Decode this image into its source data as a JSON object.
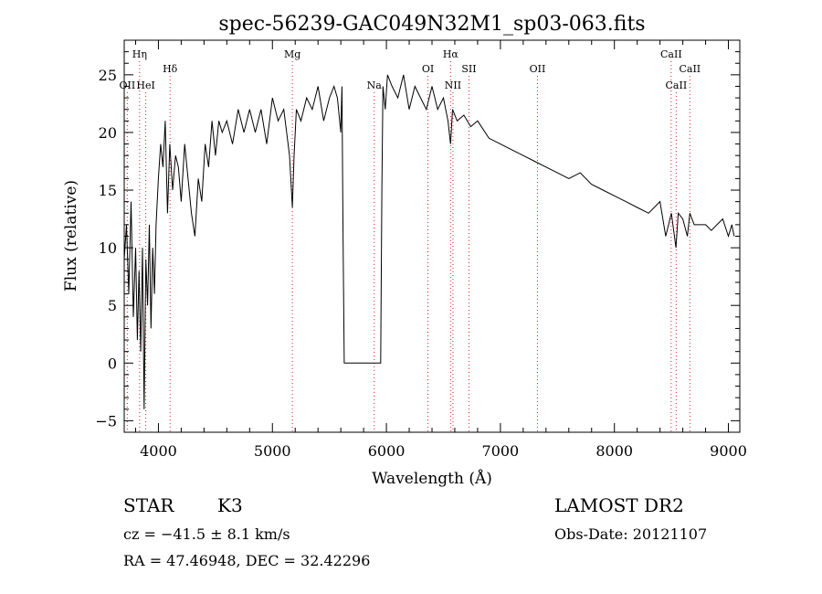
{
  "chart_data": {
    "type": "line",
    "title": "spec-56239-GAC049N32M1_sp03-063.fits",
    "xlabel": "Wavelength (Å)",
    "ylabel": "Flux (relative)",
    "xlim": [
      3700,
      9100
    ],
    "ylim": [
      -6,
      28
    ],
    "xticks": [
      4000,
      5000,
      6000,
      7000,
      8000,
      9000
    ],
    "yticks": [
      -5,
      0,
      5,
      10,
      15,
      20,
      25
    ],
    "grid": false,
    "series": [
      {
        "x": [
          3700,
          3720,
          3740,
          3760,
          3780,
          3800,
          3815,
          3830,
          3845,
          3860,
          3875,
          3890,
          3905,
          3920,
          3935,
          3950,
          3965,
          3980,
          4000,
          4020,
          4040,
          4060,
          4080,
          4100,
          4125,
          4150,
          4175,
          4200,
          4230,
          4260,
          4290,
          4320,
          4350,
          4380,
          4410,
          4440,
          4470,
          4500,
          4530,
          4560,
          4600,
          4650,
          4700,
          4750,
          4800,
          4850,
          4900,
          4950,
          5000,
          5050,
          5100,
          5150,
          5175,
          5190,
          5210,
          5250,
          5300,
          5350,
          5400,
          5450,
          5500,
          5540,
          5570,
          5590,
          5600,
          5610,
          5620,
          5630,
          5700,
          5800,
          5900,
          5950,
          5960,
          5970,
          5990,
          6010,
          6050,
          6100,
          6150,
          6200,
          6250,
          6300,
          6350,
          6400,
          6450,
          6500,
          6540,
          6563,
          6580,
          6620,
          6680,
          6740,
          6800,
          6900,
          7000,
          7100,
          7200,
          7300,
          7400,
          7500,
          7600,
          7700,
          7800,
          7900,
          8000,
          8100,
          8200,
          8300,
          8400,
          8450,
          8500,
          8540,
          8560,
          8600,
          8640,
          8662,
          8700,
          8800,
          8850,
          8900,
          8950,
          9000,
          9030,
          9050
        ],
        "y": [
          9,
          12,
          6,
          14,
          4,
          10,
          2,
          8,
          1,
          10,
          -4,
          9,
          5,
          12,
          3,
          10,
          6,
          12,
          16,
          19,
          17,
          21,
          13,
          19,
          15,
          18,
          17,
          14,
          19,
          16,
          13,
          11,
          16,
          14,
          19,
          17,
          21,
          18,
          21,
          20,
          21,
          19,
          22,
          20,
          22,
          20,
          22,
          19,
          23,
          21,
          22,
          18,
          13.5,
          18,
          22,
          21,
          23,
          22,
          24,
          21,
          23,
          24,
          23,
          21,
          20,
          24,
          11,
          0,
          0,
          0,
          0,
          0,
          15,
          24,
          22,
          25,
          24,
          23,
          25,
          22,
          24,
          23,
          22,
          24,
          22,
          23,
          21,
          19,
          22,
          21,
          21.5,
          20.5,
          21,
          19.5,
          19,
          18.5,
          18,
          17.5,
          17,
          16.5,
          16,
          16.5,
          15.5,
          15,
          14.5,
          14,
          13.5,
          13,
          14,
          11,
          13,
          10,
          13,
          12.5,
          11,
          13,
          12,
          12,
          11.5,
          12,
          12.5,
          11,
          12,
          11
        ]
      }
    ],
    "line_markers": [
      {
        "label": "Hη",
        "x": 3835,
        "row": 1
      },
      {
        "label": "OII",
        "x": 3727,
        "row": 3
      },
      {
        "label": "HeI",
        "x": 3889,
        "row": 3
      },
      {
        "label": "Hδ",
        "x": 4102,
        "row": 2
      },
      {
        "label": "Mg",
        "x": 5175,
        "row": 1
      },
      {
        "label": "Na",
        "x": 5893,
        "row": 3
      },
      {
        "label": "Hα",
        "x": 6563,
        "row": 1
      },
      {
        "label": "OI",
        "x": 6364,
        "row": 2
      },
      {
        "label": "SII",
        "x": 6724,
        "row": 2
      },
      {
        "label": "NII",
        "x": 6584,
        "row": 3
      },
      {
        "label": "OII",
        "x": 7325,
        "row": 2
      },
      {
        "label": "CaII",
        "x": 8498,
        "row": 1
      },
      {
        "label": "CaII",
        "x": 8662,
        "row": 2
      },
      {
        "label": "CaII",
        "x": 8542,
        "row": 3
      }
    ]
  },
  "info": {
    "object_type": "STAR",
    "subclass": "K3",
    "survey": "LAMOST DR2",
    "velocity": "cz = −41.5 ± 8.1 km/s",
    "obs_date": "Obs-Date: 20121107",
    "coords": "RA =  47.46948, DEC =  32.42296"
  }
}
